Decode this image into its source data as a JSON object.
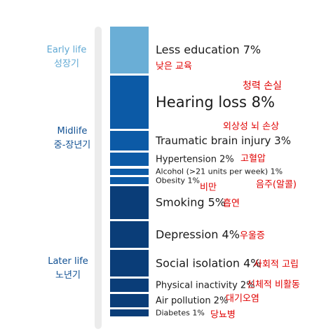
{
  "stages": [
    {
      "label_en": "Early life",
      "label_ko": "성장기",
      "color": "#5fa8d3"
    },
    {
      "label_en": "Midlife",
      "label_ko": "중-장년기",
      "color": "#0f4f92"
    },
    {
      "label_en": "Later life",
      "label_ko": "노년기",
      "color": "#0f4f92"
    }
  ],
  "colors": {
    "early": "#6aaed6",
    "mid": "#0c5aa6",
    "late": "#0a3d78",
    "korean": "#e00000"
  },
  "chart_data": {
    "type": "bar",
    "orientation": "stacked-vertical",
    "categories": [
      "Less education",
      "Hearing loss",
      "Traumatic brain injury",
      "Hypertension",
      "Alcohol (>21 units per week)",
      "Obesity",
      "Smoking",
      "Depression",
      "Social isolation",
      "Physical inactivity",
      "Air pollution",
      "Diabetes"
    ],
    "values": [
      7,
      8,
      3,
      2,
      1,
      1,
      5,
      4,
      4,
      2,
      2,
      1
    ],
    "value_labels": [
      "7%",
      "8%",
      "3%",
      "2%",
      "1%",
      "1%",
      "5%",
      "4%",
      "4%",
      "2%",
      "2%",
      "1%"
    ],
    "korean_labels": [
      "낮은 교육",
      "청력 손실",
      "외상성 뇌 손상",
      "고혈압",
      "음주(알콜)",
      "비만",
      "흡연",
      "우울증",
      "사회적 고립",
      "신체적 비활동",
      "대기오염",
      "당뇨병"
    ],
    "stage_of_factor": [
      "early",
      "mid",
      "mid",
      "mid",
      "mid",
      "mid",
      "late",
      "late",
      "late",
      "late",
      "late",
      "late"
    ]
  }
}
